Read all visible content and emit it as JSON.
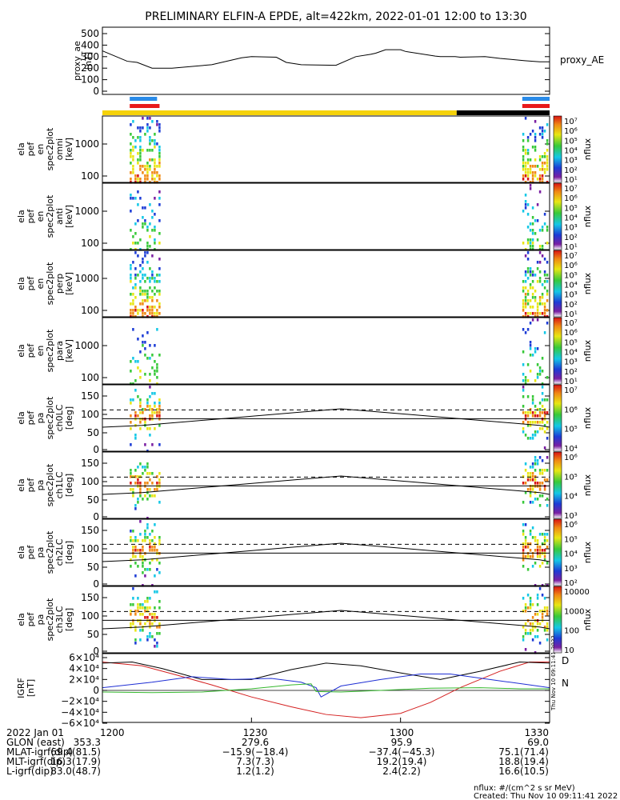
{
  "title": "PRELIMINARY ELFIN-A EPDE, alt=422km, 2022-01-01 12:00 to 13:30",
  "panels": [
    {
      "name": "proxy_ae",
      "ylabel_lines": [
        "proxy_ae",
        "[nT]"
      ],
      "yticks": [
        "500",
        "400",
        "300",
        "200",
        "100",
        "0"
      ],
      "legend": "proxy_AE"
    },
    {
      "name": "omni",
      "ylabel_lines": [
        "ela",
        "pef",
        "en",
        "spec2plot",
        "omni",
        "[keV]"
      ],
      "yticks": [
        "1000",
        "100"
      ]
    },
    {
      "name": "anti",
      "ylabel_lines": [
        "ela",
        "pef",
        "en",
        "spec2plot",
        "anti",
        "[keV]"
      ],
      "yticks": [
        "1000",
        "100"
      ]
    },
    {
      "name": "perp",
      "ylabel_lines": [
        "ela",
        "pef",
        "en",
        "spec2plot",
        "perp",
        "[keV]"
      ],
      "yticks": [
        "1000",
        "100"
      ]
    },
    {
      "name": "para",
      "ylabel_lines": [
        "ela",
        "pef",
        "en",
        "spec2plot",
        "para",
        "[keV]"
      ],
      "yticks": [
        "1000",
        "100"
      ]
    },
    {
      "name": "ch0LC",
      "ylabel_lines": [
        "ela",
        "pef",
        "pa",
        "spec2plot",
        "ch0LC",
        "[deg]"
      ],
      "yticks": [
        "150",
        "100",
        "50",
        "0"
      ]
    },
    {
      "name": "ch1LC",
      "ylabel_lines": [
        "ela",
        "pef",
        "pa",
        "spec2plot",
        "ch1LC",
        "[deg]"
      ],
      "yticks": [
        "150",
        "100",
        "50",
        "0"
      ]
    },
    {
      "name": "ch2LC",
      "ylabel_lines": [
        "ela",
        "pef",
        "pa",
        "spec2plot",
        "ch2LC",
        "[deg]"
      ],
      "yticks": [
        "150",
        "100",
        "50",
        "0"
      ]
    },
    {
      "name": "ch3LC",
      "ylabel_lines": [
        "ela",
        "pef",
        "pa",
        "spec2plot",
        "ch3LC",
        "[deg]"
      ],
      "yticks": [
        "150",
        "100",
        "50",
        "0"
      ]
    },
    {
      "name": "IGRF",
      "ylabel_lines": [
        "IGRF",
        "[nT]"
      ],
      "yticks": [
        "6×10⁴",
        "4×10⁴",
        "2×10⁴",
        "0",
        "−2×10⁴",
        "−4×10⁴",
        "−6×10⁴"
      ],
      "side_labels": [
        "D",
        "N"
      ],
      "vertical_note": "Thu Nov 10 09:11:41 2022"
    }
  ],
  "colorbars": [
    {
      "label": "nflux",
      "ticks": [
        "10⁷",
        "10⁶",
        "10⁵",
        "10⁴",
        "10³",
        "10²",
        "10¹"
      ]
    },
    {
      "label": "nflux",
      "ticks": [
        "10⁷",
        "10⁶",
        "10⁵",
        "10⁴",
        "10³",
        "10²",
        "10¹"
      ]
    },
    {
      "label": "nflux",
      "ticks": [
        "10⁷",
        "10⁶",
        "10⁵",
        "10⁴",
        "10³",
        "10²",
        "10¹"
      ]
    },
    {
      "label": "nflux",
      "ticks": [
        "10⁷",
        "10⁶",
        "10⁵",
        "10⁴",
        "10³",
        "10²",
        "10¹"
      ]
    },
    {
      "label": "nflux",
      "ticks": [
        "10⁷",
        "10⁶",
        "10⁵",
        "10⁴"
      ]
    },
    {
      "label": "nflux",
      "ticks": [
        "10⁶",
        "10⁵",
        "10⁴",
        "10³"
      ]
    },
    {
      "label": "nflux",
      "ticks": [
        "10⁶",
        "10⁵",
        "10⁴",
        "10³",
        "10²"
      ]
    },
    {
      "label": "nflux",
      "ticks": [
        "10000",
        "1000",
        "100",
        "10"
      ]
    }
  ],
  "ephemeris": {
    "rows": [
      [
        "2022 Jan 01",
        "1200",
        "1230",
        "1300",
        "1330"
      ],
      [
        "GLON (east)",
        "353.3",
        "279.6",
        "95.9",
        "69.0"
      ],
      [
        "MLAT-igrf(dip)",
        "69.4(81.5)",
        "−15.9(−18.4)",
        "−37.4(−45.3)",
        "75.1(71.4)"
      ],
      [
        "MLT-igrf(dip)",
        "16.3(17.9)",
        "7.3(7.3)",
        "19.2(19.4)",
        "18.8(19.4)"
      ],
      [
        "L-igrf(dip)",
        "83.0(48.7)",
        "1.2(1.2)",
        "2.4(2.2)",
        "16.6(10.5)"
      ]
    ]
  },
  "footer": {
    "units": "nflux: #/(cm^2 s sr MeV)",
    "created": "Created: Thu Nov 10 09:11:41 2022"
  },
  "colors": {
    "bar_yellow": "#f5d20a",
    "bar_black": "#000000",
    "bar_blue": "#2a8be8",
    "bar_red": "#e8191b",
    "igrf_black": "#000000",
    "igrf_blue": "#1f2fd4",
    "igrf_red": "#d41f1f",
    "igrf_green": "#35b82e"
  },
  "chart_data": {
    "type": "line",
    "x_range_minutes": [
      0,
      90
    ],
    "x_tick_labels": [
      "1200",
      "1230",
      "1300",
      "1330"
    ],
    "proxy_ae": {
      "ylim": [
        0,
        500
      ],
      "x": [
        0,
        5,
        7,
        10,
        14,
        22,
        28,
        30,
        35,
        37,
        40,
        47,
        51,
        54,
        55,
        57,
        60,
        61,
        67,
        68,
        71,
        72,
        77,
        80,
        85,
        88,
        90
      ],
      "y": [
        350,
        260,
        250,
        200,
        200,
        230,
        290,
        300,
        295,
        250,
        230,
        225,
        300,
        320,
        330,
        360,
        360,
        345,
        305,
        300,
        300,
        295,
        300,
        285,
        265,
        255,
        255
      ]
    },
    "igrf": {
      "ylim": [
        -60000,
        60000
      ],
      "series": [
        {
          "name": "D",
          "color": "red",
          "x": [
            0,
            8,
            15,
            22,
            30,
            38,
            45,
            52,
            60,
            66,
            72,
            80,
            86,
            90
          ],
          "y": [
            52000,
            45000,
            28000,
            10000,
            -12000,
            -30000,
            -44000,
            -50000,
            -42000,
            -22000,
            5000,
            35000,
            52000,
            52000
          ]
        },
        {
          "name": "black",
          "color": "black",
          "x": [
            0,
            6,
            12,
            20,
            30,
            38,
            45,
            52,
            60,
            68,
            76,
            84,
            90
          ],
          "y": [
            50000,
            52000,
            40000,
            20000,
            20000,
            38000,
            50000,
            45000,
            32000,
            20000,
            35000,
            52000,
            50000
          ]
        },
        {
          "name": "blue",
          "color": "blue",
          "x": [
            0,
            10,
            18,
            26,
            34,
            40,
            43,
            44,
            48,
            56,
            64,
            70,
            78,
            86,
            90
          ],
          "y": [
            5000,
            15000,
            25000,
            20000,
            22000,
            15000,
            5000,
            -12000,
            8000,
            20000,
            30000,
            30000,
            20000,
            10000,
            5000
          ]
        },
        {
          "name": "N",
          "color": "green",
          "x": [
            0,
            10,
            20,
            30,
            38,
            42,
            43,
            48,
            56,
            66,
            76,
            84,
            90
          ],
          "y": [
            -3000,
            -4000,
            -3000,
            3000,
            10000,
            12000,
            -2000,
            -3000,
            0,
            4000,
            5000,
            3000,
            3000
          ]
        }
      ]
    },
    "pitch_angle_lines": {
      "ylim": [
        0,
        180
      ],
      "solid_upper_x": [
        0,
        8,
        48,
        88,
        90
      ],
      "solid_upper_y": [
        65,
        70,
        115,
        70,
        65
      ],
      "dashed": 112,
      "solid": 88
    },
    "spectra_activity_minutes": [
      [
        5.5,
        11.5
      ],
      [
        84.5,
        89.5
      ]
    ],
    "status_bars": {
      "blue": [
        [
          5.5,
          11
        ],
        [
          84.5,
          90
        ]
      ],
      "red": [
        [
          5.5,
          11.5
        ],
        [
          84.5,
          90
        ]
      ],
      "yellow": [
        0,
        71.3
      ],
      "black": [
        71.3,
        90
      ]
    }
  }
}
